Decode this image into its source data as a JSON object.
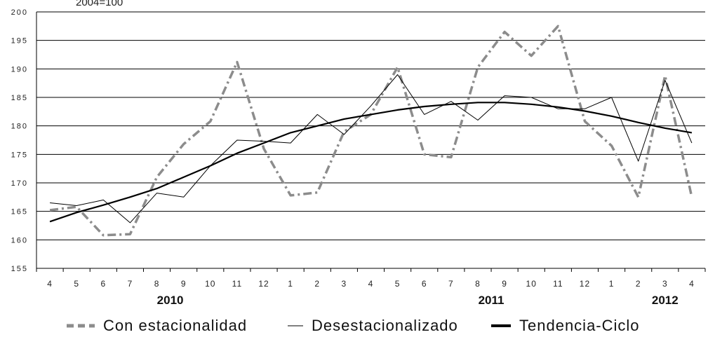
{
  "chart_data": {
    "type": "line",
    "header_text": "2004=100",
    "ylim": [
      155,
      200
    ],
    "y_ticks": [
      155,
      160,
      165,
      170,
      175,
      180,
      185,
      190,
      195,
      200
    ],
    "grid": true,
    "categories": [
      "4",
      "5",
      "6",
      "7",
      "8",
      "9",
      "10",
      "11",
      "12",
      "1",
      "2",
      "3",
      "4",
      "5",
      "6",
      "7",
      "8",
      "9",
      "10",
      "11",
      "12",
      "1",
      "2",
      "3",
      "4"
    ],
    "year_labels": [
      {
        "label": "2010",
        "index": 4.5
      },
      {
        "label": "2011",
        "index": 16.5
      },
      {
        "label": "2012",
        "index": 23
      }
    ],
    "series": [
      {
        "name": "Con estacionalidad",
        "style": "dashdot",
        "color": "#8c8c8c",
        "values": [
          165.2,
          165.8,
          160.8,
          161.0,
          171.0,
          176.8,
          180.8,
          191.2,
          176.0,
          167.8,
          168.3,
          179.0,
          182.0,
          190.3,
          175.0,
          174.5,
          190.3,
          196.5,
          192.3,
          197.5,
          180.8,
          176.5,
          167.5,
          188.8,
          167.5
        ]
      },
      {
        "name": "Desestacionalizado",
        "style": "thin",
        "color": "#000000",
        "values": [
          166.5,
          166.0,
          167.0,
          163.0,
          168.2,
          167.5,
          173.0,
          177.5,
          177.3,
          177.0,
          182.0,
          178.5,
          183.5,
          189.0,
          182.0,
          184.3,
          181.0,
          185.3,
          185.0,
          183.0,
          183.0,
          185.0,
          173.8,
          188.0,
          177.0
        ]
      },
      {
        "name": "Tendencia-Ciclo",
        "style": "thick",
        "color": "#000000",
        "values": [
          163.2,
          164.8,
          166.1,
          167.5,
          169.0,
          171.0,
          173.0,
          175.2,
          177.0,
          178.8,
          180.0,
          181.2,
          182.0,
          182.8,
          183.4,
          183.8,
          184.1,
          184.1,
          183.8,
          183.3,
          182.6,
          181.7,
          180.6,
          179.6,
          178.8
        ]
      }
    ]
  }
}
